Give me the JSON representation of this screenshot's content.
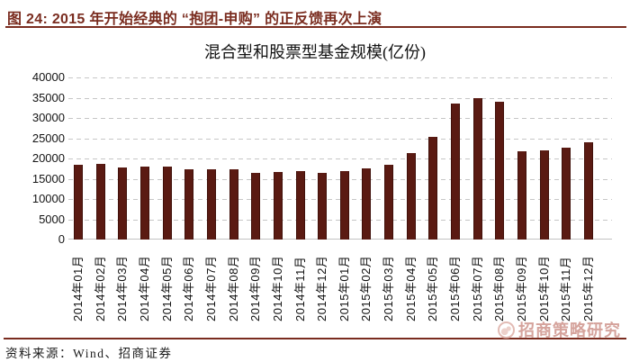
{
  "header": {
    "title": "图 24:  2015 年开始经典的 “抱团-申购” 的正反馈再次上演"
  },
  "chart_data": {
    "type": "bar",
    "title": "混合型和股票型基金规模(亿份)",
    "categories": [
      "2014年01月",
      "2014年02月",
      "2014年03月",
      "2014年04月",
      "2014年05月",
      "2014年06月",
      "2014年07月",
      "2014年08月",
      "2014年09月",
      "2014年10月",
      "2014年11月",
      "2014年12月",
      "2015年01月",
      "2015年02月",
      "2015年03月",
      "2015年04月",
      "2015年05月",
      "2015年06月",
      "2015年07月",
      "2015年08月",
      "2015年09月",
      "2015年10月",
      "2015年11月",
      "2015年12月"
    ],
    "values": [
      18400,
      18600,
      17700,
      17900,
      17900,
      17400,
      17400,
      17300,
      16500,
      16700,
      16900,
      16500,
      16900,
      17600,
      18400,
      21400,
      25400,
      33500,
      34900,
      33900,
      21700,
      22000,
      22700,
      23900
    ],
    "ylim": [
      0,
      40000
    ],
    "yticks": [
      0,
      5000,
      10000,
      15000,
      20000,
      25000,
      30000,
      35000,
      40000
    ],
    "xlabel": "",
    "ylabel": "",
    "grid": "horizontal-dashed",
    "legend": "none",
    "bar_orientation": "vertical"
  },
  "footer": {
    "source": "资料来源：Wind、招商证券",
    "watermark": {
      "icon": "circle-logo-icon",
      "text": "招商策略研究"
    }
  },
  "colors": {
    "accent": "#7a2c1f",
    "bar": "#5a1a12",
    "grid": "#c6c6c6",
    "watermark": "#cb8d84"
  }
}
